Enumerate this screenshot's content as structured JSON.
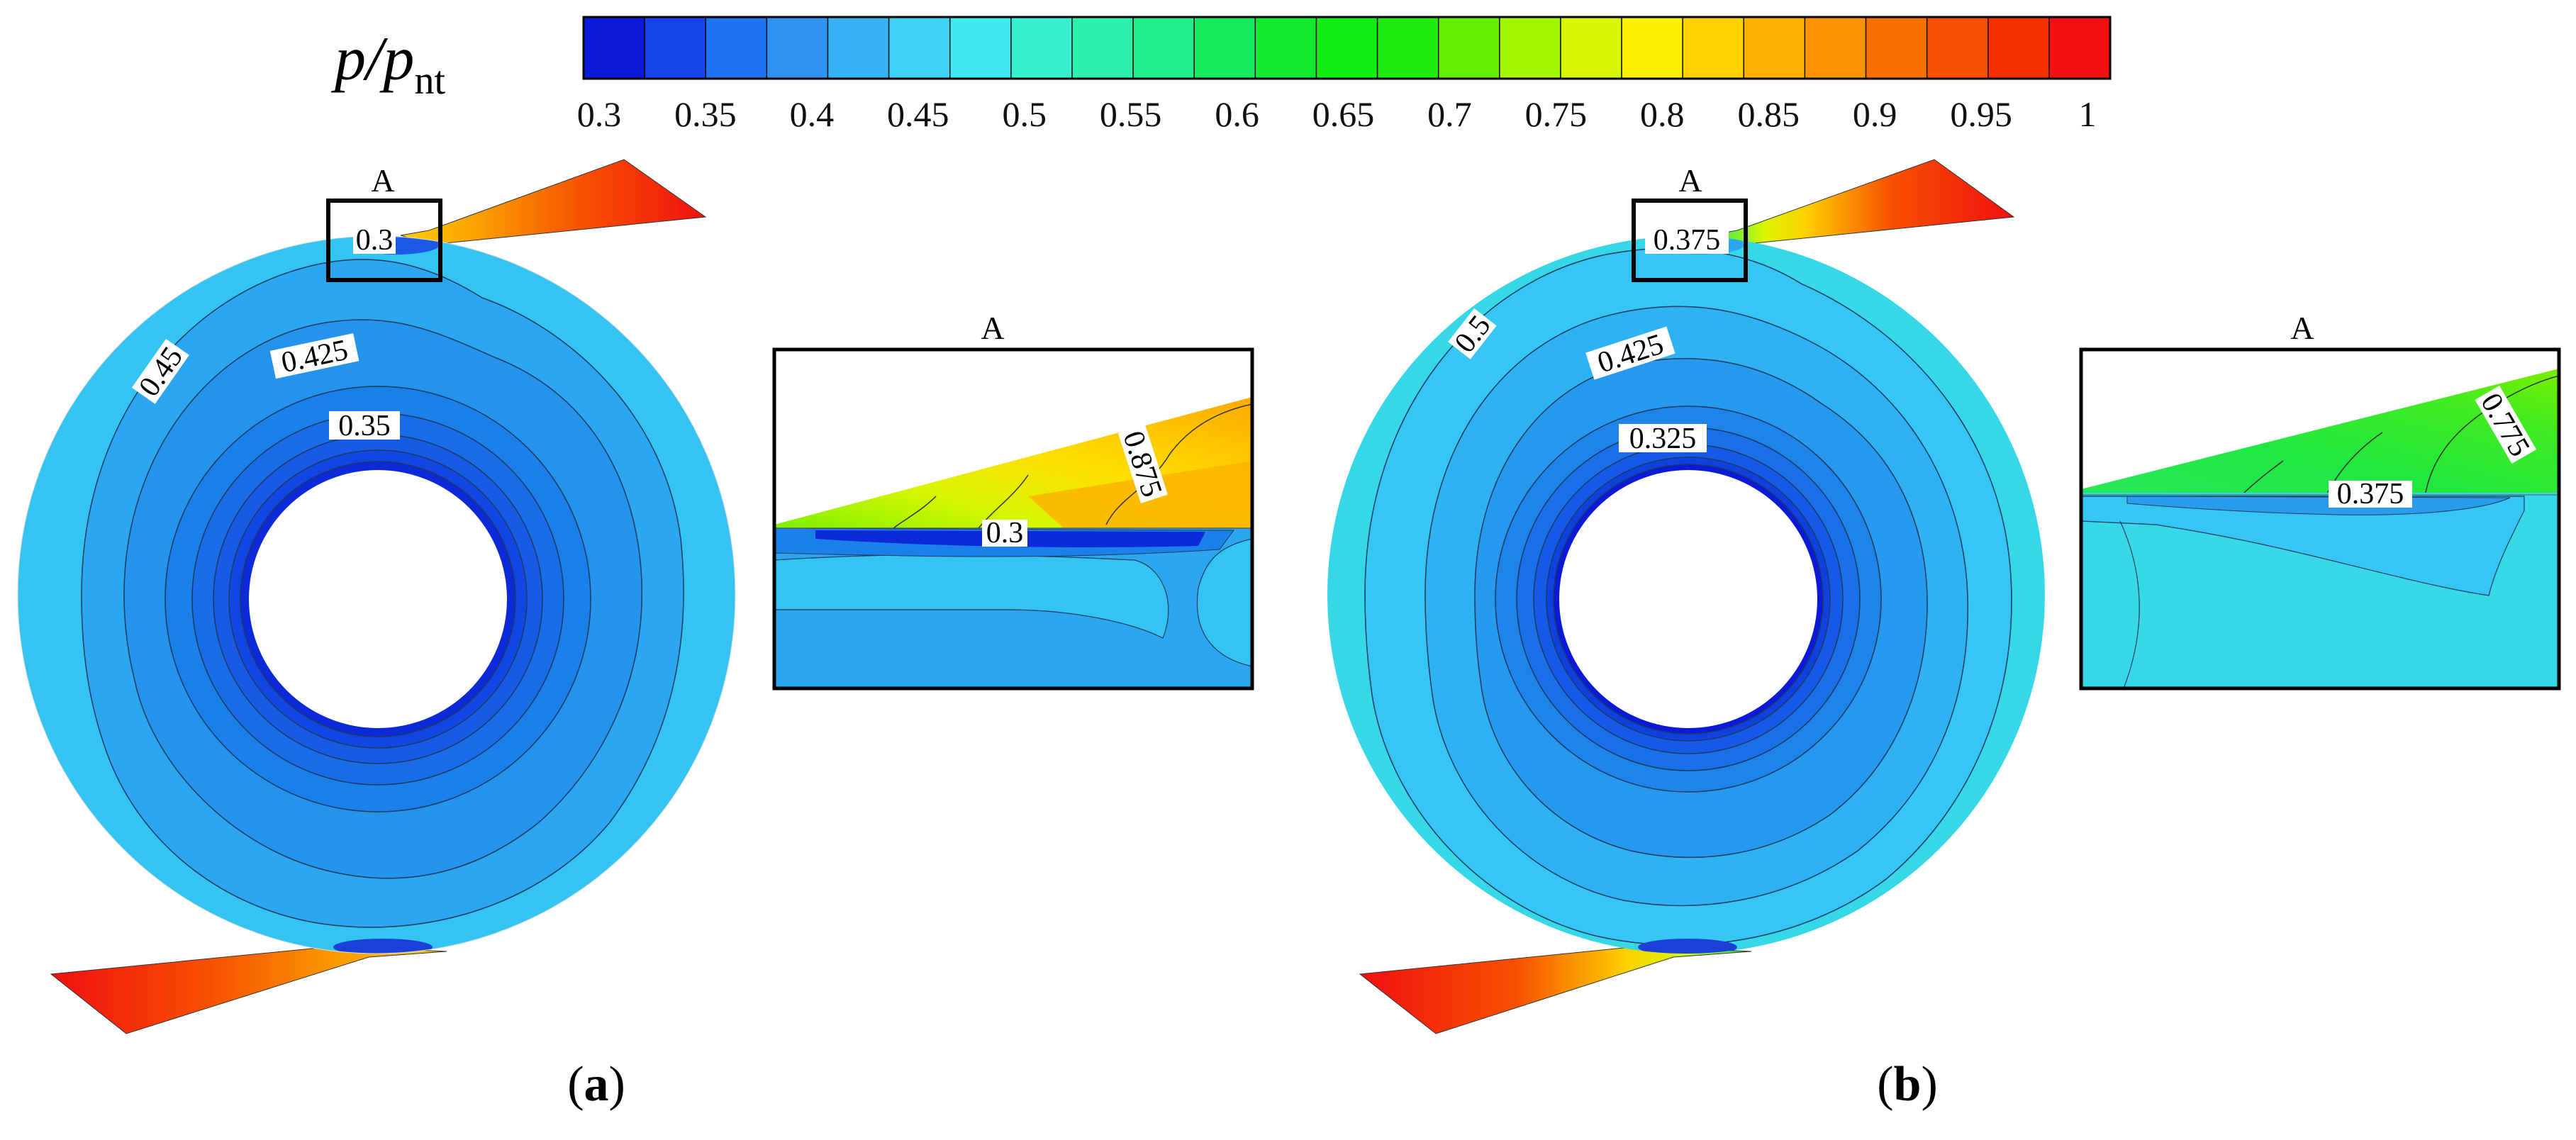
{
  "colorbar": {
    "label_main": "p/p",
    "label_sub": "nt",
    "tick_labels": [
      "0.3",
      "0.35",
      "0.4",
      "0.45",
      "0.5",
      "0.55",
      "0.6",
      "0.65",
      "0.7",
      "0.75",
      "0.8",
      "0.85",
      "0.9",
      "0.95",
      "1"
    ],
    "colors": [
      "#0a1ad8",
      "#1446ec",
      "#1f72f0",
      "#2e92f3",
      "#36b2f6",
      "#3fd2f7",
      "#40e8f0",
      "#38f0d0",
      "#2cefb0",
      "#22ee8a",
      "#18ea60",
      "#14ea30",
      "#12ee12",
      "#20ec12",
      "#62f000",
      "#a2f600",
      "#d8f600",
      "#fbf000",
      "#fdd000",
      "#fdb000",
      "#fb9200",
      "#f97000",
      "#f75000",
      "#f53000",
      "#f01010"
    ]
  },
  "panels": [
    {
      "id": "a",
      "label_letter": "a",
      "zoom_marker": "A",
      "zoom_title": "A",
      "contour_labels": [
        "0.3",
        "0.45",
        "0.425",
        "0.35"
      ],
      "zoom_contour_labels": [
        "0.875",
        "0.3"
      ]
    },
    {
      "id": "b",
      "label_letter": "b",
      "zoom_marker": "A",
      "zoom_title": "A",
      "contour_labels": [
        "0.375",
        "0.5",
        "0.425",
        "0.325"
      ],
      "zoom_contour_labels": [
        "0.775",
        "0.375"
      ]
    }
  ]
}
